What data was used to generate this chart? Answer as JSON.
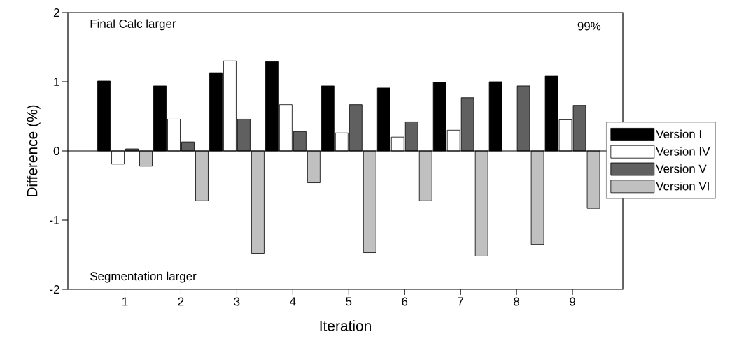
{
  "chart_data": {
    "type": "bar",
    "xlabel": "Iteration",
    "ylabel": "Difference (%)",
    "categories": [
      "1",
      "2",
      "3",
      "4",
      "5",
      "6",
      "7",
      "8",
      "9"
    ],
    "ylim": [
      -2,
      2
    ],
    "yticks": [
      -2,
      -1,
      0,
      1,
      2
    ],
    "legend": "right",
    "annotations": [
      "Final Calc larger",
      "Segmentation larger",
      "99%"
    ],
    "series": [
      {
        "name": "Version I",
        "color": "#000000",
        "values": [
          1.01,
          0.94,
          1.13,
          1.29,
          0.94,
          0.91,
          0.99,
          1.0,
          1.08
        ]
      },
      {
        "name": "Version IV",
        "color": "#ffffff",
        "values": [
          -0.19,
          0.46,
          1.3,
          0.67,
          0.26,
          0.2,
          0.3,
          null,
          0.45
        ]
      },
      {
        "name": "Version V",
        "color": "#606060",
        "values": [
          0.03,
          0.13,
          0.46,
          0.28,
          0.67,
          0.42,
          0.77,
          0.94,
          0.66
        ]
      },
      {
        "name": "Version VI",
        "color": "#c0c0c0",
        "values": [
          -0.22,
          -0.72,
          -1.48,
          -0.46,
          -1.47,
          -0.72,
          -1.52,
          -1.35,
          -0.83
        ]
      }
    ]
  }
}
